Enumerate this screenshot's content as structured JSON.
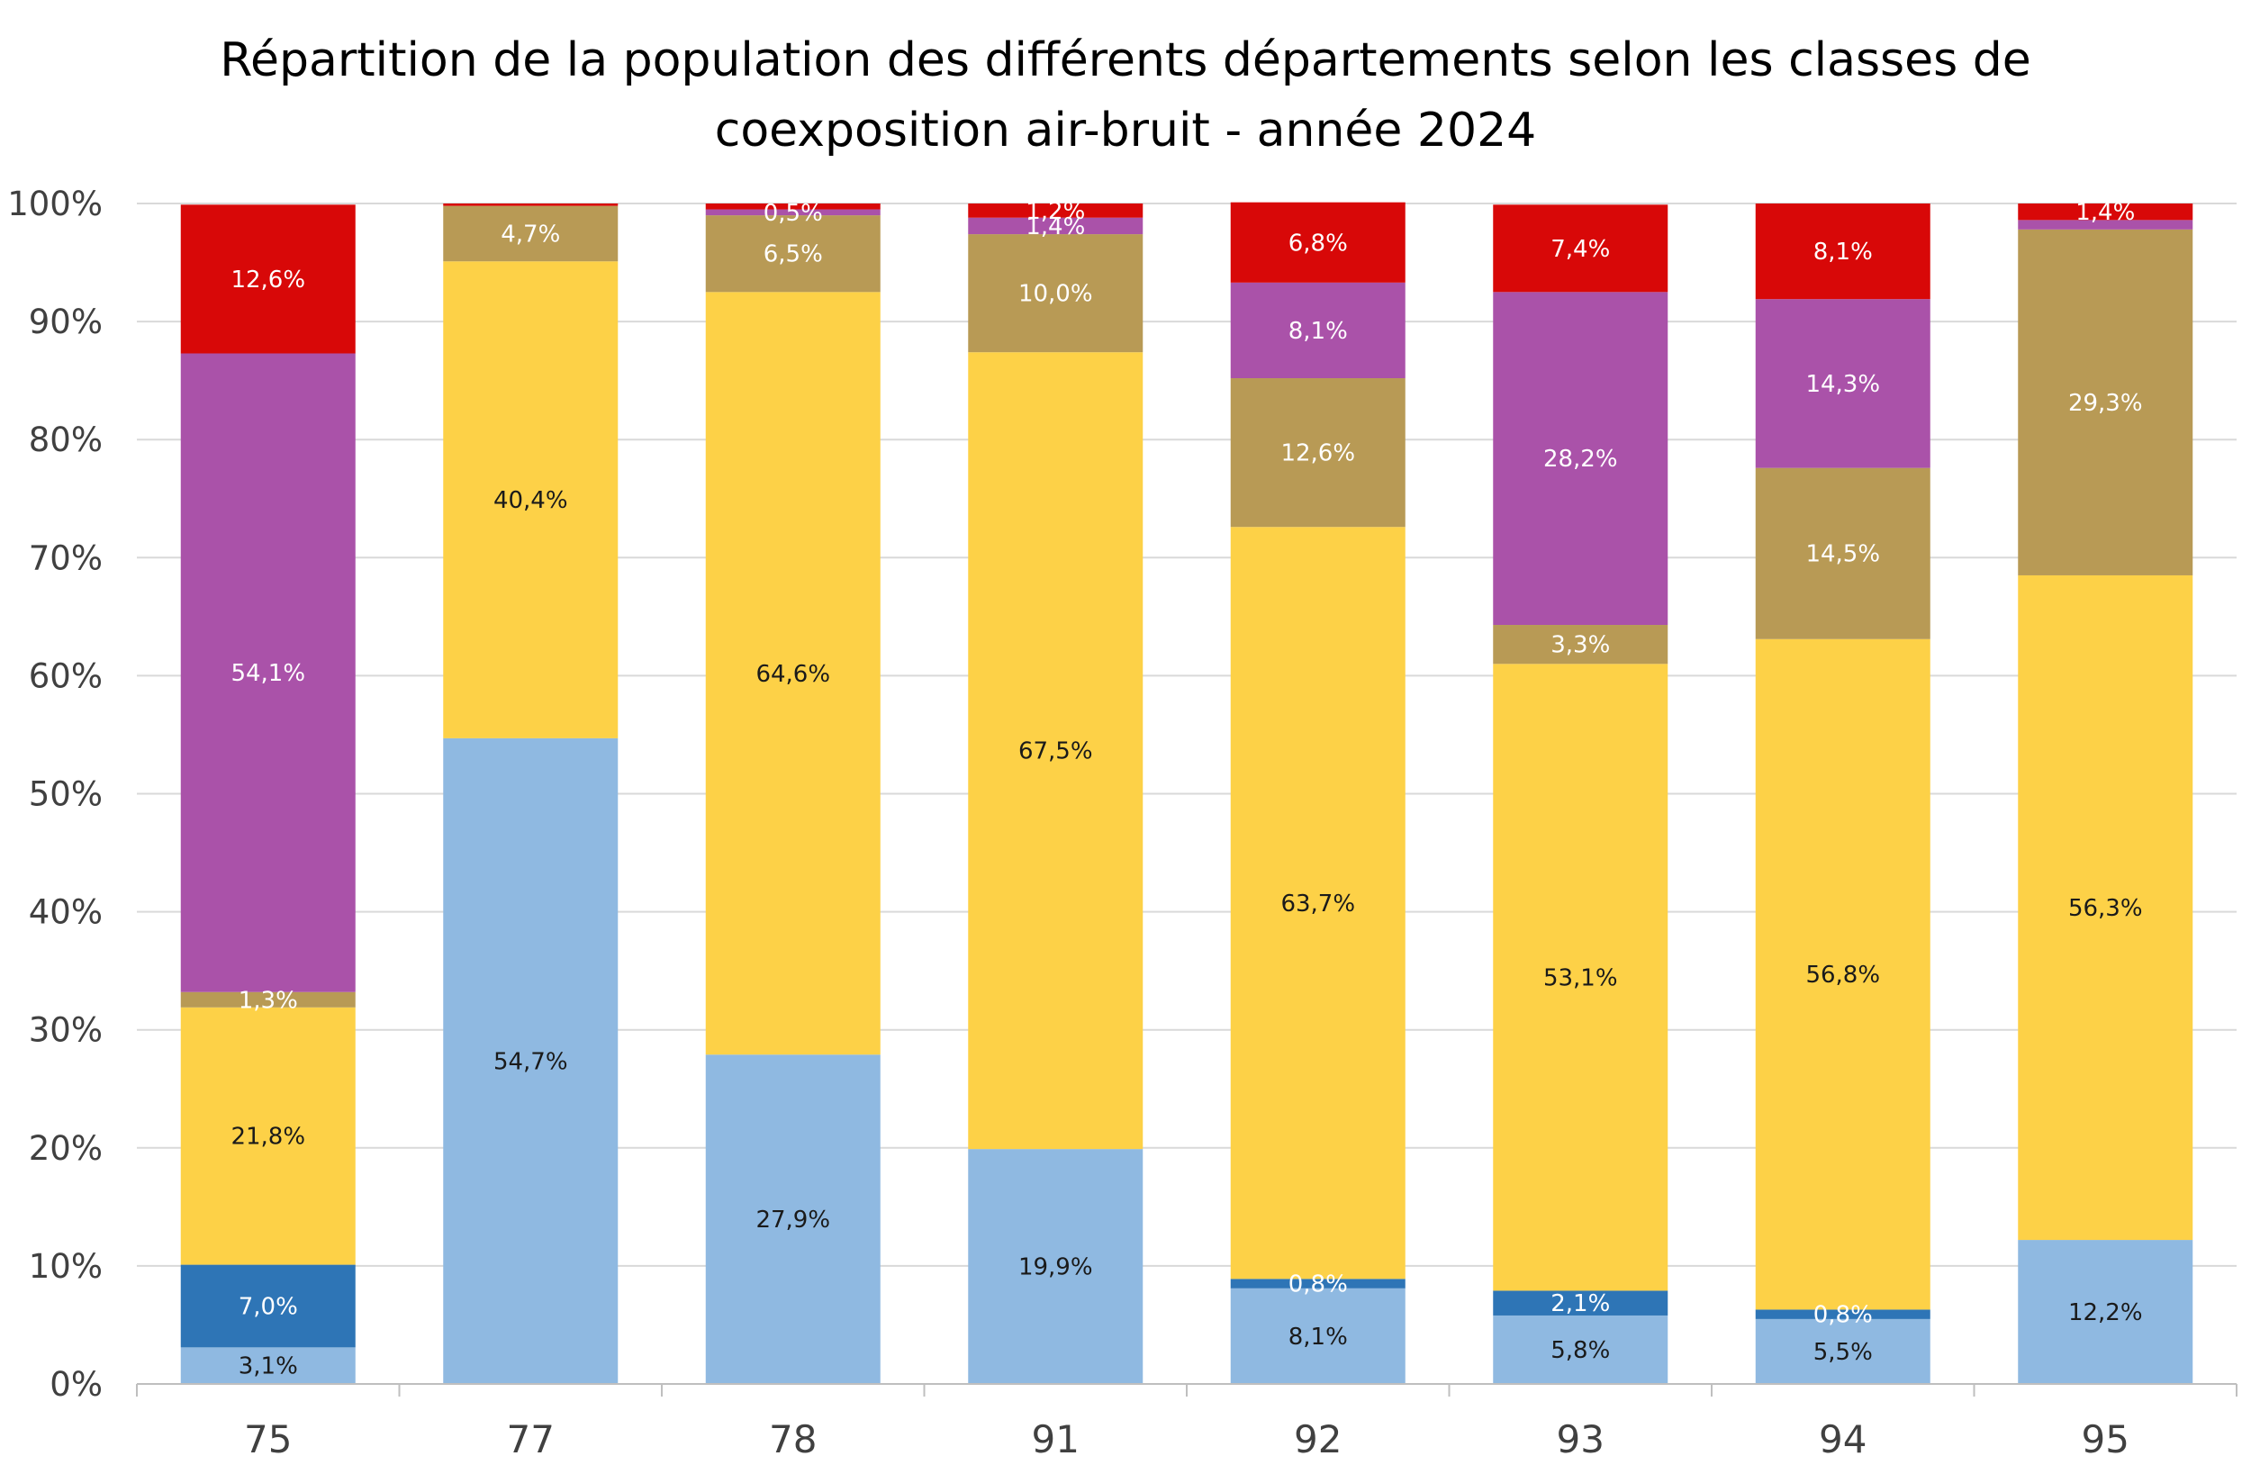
{
  "chart_data": {
    "type": "bar",
    "stacked": true,
    "percent": true,
    "title_lines": [
      "Répartition de la population des différents départements selon les classes de",
      "coexposition air-bruit - année 2024"
    ],
    "title": "Répartition de la population des différents départements selon les classes de coexposition air-bruit - année 2024",
    "xlabel": "",
    "ylabel": "",
    "ylim": [
      0,
      100
    ],
    "y_ticks": [
      "0%",
      "10%",
      "20%",
      "30%",
      "40%",
      "50%",
      "60%",
      "70%",
      "80%",
      "90%",
      "100%"
    ],
    "grid": true,
    "legend": "none",
    "categories": [
      "75",
      "77",
      "78",
      "91",
      "92",
      "93",
      "94",
      "95"
    ],
    "series": [
      {
        "color": "#8FB9E1",
        "values": [
          3.1,
          54.7,
          27.9,
          19.9,
          8.1,
          5.8,
          5.5,
          12.2
        ],
        "labels": [
          "3,1%",
          "54,7%",
          "27,9%",
          "19,9%",
          "8,1%",
          "5,8%",
          "5,5%",
          "12,2%"
        ],
        "label_color": "#1a1a1a"
      },
      {
        "color": "#2E75B6",
        "values": [
          7.0,
          0,
          0,
          0,
          0.8,
          2.1,
          0.8,
          0
        ],
        "labels": [
          "7,0%",
          "",
          "",
          "",
          "0,8%",
          "2,1%",
          "0,8%",
          ""
        ],
        "label_color": "#ffffff"
      },
      {
        "color": "#FDD147",
        "values": [
          21.8,
          40.4,
          64.6,
          67.5,
          63.7,
          53.1,
          56.8,
          56.3
        ],
        "labels": [
          "21,8%",
          "40,4%",
          "64,6%",
          "67,5%",
          "63,7%",
          "53,1%",
          "56,8%",
          "56,3%"
        ],
        "label_color": "#1a1a1a"
      },
      {
        "color": "#B89A55",
        "values": [
          1.3,
          4.7,
          6.5,
          10.0,
          12.6,
          3.3,
          14.5,
          29.3
        ],
        "labels": [
          "1,3%",
          "4,7%",
          "6,5%",
          "10,0%",
          "12,6%",
          "3,3%",
          "14,5%",
          "29,3%"
        ],
        "label_color": "#ffffff"
      },
      {
        "color": "#AA52A9",
        "values": [
          54.1,
          0,
          0.5,
          1.4,
          8.1,
          28.2,
          14.3,
          0.8
        ],
        "labels": [
          "54,1%",
          "",
          "0,5%",
          "1,4%",
          "8,1%",
          "28,2%",
          "14,3%",
          ""
        ],
        "label_color": "#ffffff"
      },
      {
        "color": "#D80808",
        "values": [
          12.6,
          0.2,
          0.5,
          1.2,
          6.8,
          7.4,
          8.1,
          1.4
        ],
        "labels": [
          "12,6%",
          "",
          "",
          "1,2%",
          "6,8%",
          "7,4%",
          "8,1%",
          "1,4%"
        ],
        "label_color": "#ffffff"
      }
    ]
  }
}
